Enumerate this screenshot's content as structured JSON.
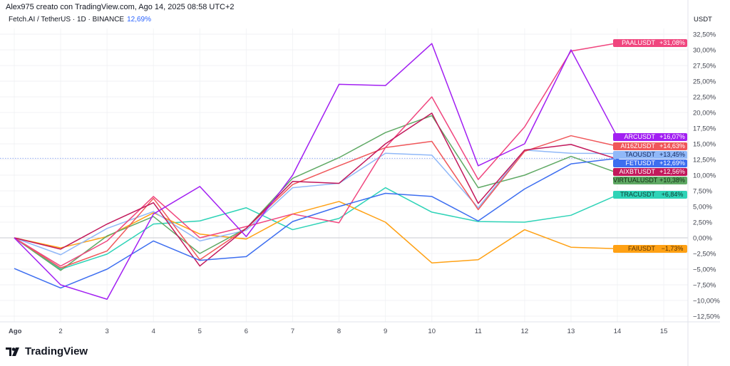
{
  "header": {
    "attribution": "Alex975 creato con TradingView.com, Ago 14, 2025 08:58 UTC+2",
    "symbol": "Fetch.AI / TetherUS · 1D · BINANCE",
    "symbol_change": "12,69%"
  },
  "logo": {
    "text": "TradingView"
  },
  "chart_data": {
    "type": "line",
    "unit_label": "USDT",
    "x": [
      1,
      2,
      3,
      4,
      5,
      6,
      7,
      8,
      9,
      10,
      11,
      12,
      13,
      14
    ],
    "x_tick_labels": [
      "Ago",
      "2",
      "3",
      "4",
      "5",
      "6",
      "7",
      "8",
      "9",
      "10",
      "11",
      "12",
      "13",
      "14",
      "15"
    ],
    "x_range": [
      1,
      15
    ],
    "ylim": [
      -14,
      35
    ],
    "y_tick_labels": [
      "32,50%",
      "30,00%",
      "27,50%",
      "25,00%",
      "22,50%",
      "20,00%",
      "17,50%",
      "15,00%",
      "12,50%",
      "10,00%",
      "7,50%",
      "5,00%",
      "2,50%",
      "0,00%",
      "−2,50%",
      "−5,00%",
      "−7,50%",
      "−10,00%",
      "−12,50%"
    ],
    "y_ticks": [
      32.5,
      30,
      27.5,
      25,
      22.5,
      20,
      17.5,
      15,
      12.5,
      10,
      7.5,
      5,
      2.5,
      0,
      -2.5,
      -5,
      -7.5,
      -10,
      -12.5
    ],
    "grid": true,
    "legend": "right-axis price labels",
    "current_line_value": 12.69,
    "series": [
      {
        "name": "TRACUSDT",
        "last": "+6,84%",
        "color": "#2ed3b7",
        "text": "#0b3d33",
        "values": [
          0,
          -5,
          -2.6,
          2.2,
          2.7,
          4.8,
          1.3,
          3.1,
          8,
          4.1,
          2.6,
          2.5,
          3.6,
          6.84
        ]
      },
      {
        "name": "FAIUSDT",
        "last": "−1,73%",
        "color": "#ffa114",
        "text": "#5a3300",
        "values": [
          0,
          -1.6,
          0.2,
          4,
          0.6,
          -0.2,
          3.8,
          5.8,
          2.5,
          -4,
          -3.5,
          1.3,
          -1.5,
          -1.73
        ]
      },
      {
        "name": "TAOUSDT",
        "last": "+13,45%",
        "color": "#90b8f8",
        "text": "#10245a",
        "values": [
          0,
          -2.7,
          1.5,
          4.2,
          -0.5,
          1.2,
          8,
          8.7,
          13.5,
          13.2,
          4.8,
          14,
          13.5,
          13.45
        ]
      },
      {
        "name": "VIRTUALUSDT",
        "last": "+10,38%",
        "color": "#5fa964",
        "text": "#0f2e12",
        "values": [
          0,
          -5.2,
          0.3,
          3.4,
          -2.5,
          1.5,
          9.5,
          12.8,
          16.8,
          19.5,
          8,
          10,
          13,
          10.38
        ]
      },
      {
        "name": "AI16ZUSDT",
        "last": "+14,63%",
        "color": "#f0575a",
        "text": "#ffffff",
        "values": [
          0,
          -4.8,
          -2.1,
          6.3,
          -3.5,
          1.5,
          8.5,
          11.5,
          14.4,
          15.4,
          4.5,
          13.8,
          16.3,
          14.63
        ]
      },
      {
        "name": "PAALUSDT",
        "last": "+31,08%",
        "color": "#f0457e",
        "text": "#ffffff",
        "values": [
          0,
          -4.5,
          -0.5,
          6.6,
          0,
          1.8,
          3.8,
          2.4,
          14.4,
          22.5,
          9.3,
          17.7,
          29.8,
          31.08
        ]
      },
      {
        "name": "AIXBTUSDT",
        "last": "+12,56%",
        "color": "#c2185b",
        "text": "#ffffff",
        "values": [
          0,
          -1.8,
          2.2,
          5.6,
          -4.5,
          1.5,
          9,
          8.7,
          15,
          19.9,
          5.5,
          14,
          14.9,
          12.56
        ]
      },
      {
        "name": "FETUSDT",
        "last": "+12,69%",
        "color": "#3d6ef0",
        "text": "#ffffff",
        "values": [
          -4.9,
          -8,
          -5,
          -0.5,
          -3.6,
          -3,
          2.6,
          5,
          7.1,
          6.6,
          2.7,
          7.8,
          11.8,
          12.69
        ]
      },
      {
        "name": "ARCUSDT",
        "last": "+16,07%",
        "color": "#a21ff2",
        "text": "#ffffff",
        "values": [
          0,
          -7.5,
          -9.8,
          3.8,
          8.2,
          0.2,
          10,
          24.5,
          24.3,
          31,
          11.5,
          15,
          30,
          16.07
        ]
      }
    ]
  }
}
